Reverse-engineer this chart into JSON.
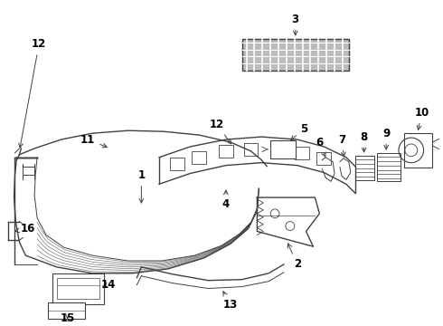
{
  "bg_color": "#ffffff",
  "line_color": "#404040",
  "label_color": "#000000",
  "label_fontsize": 8.5,
  "label_fontweight": "bold",
  "figsize": [
    4.9,
    3.6
  ],
  "dpi": 100,
  "xlim": [
    0,
    490
  ],
  "ylim": [
    0,
    360
  ]
}
